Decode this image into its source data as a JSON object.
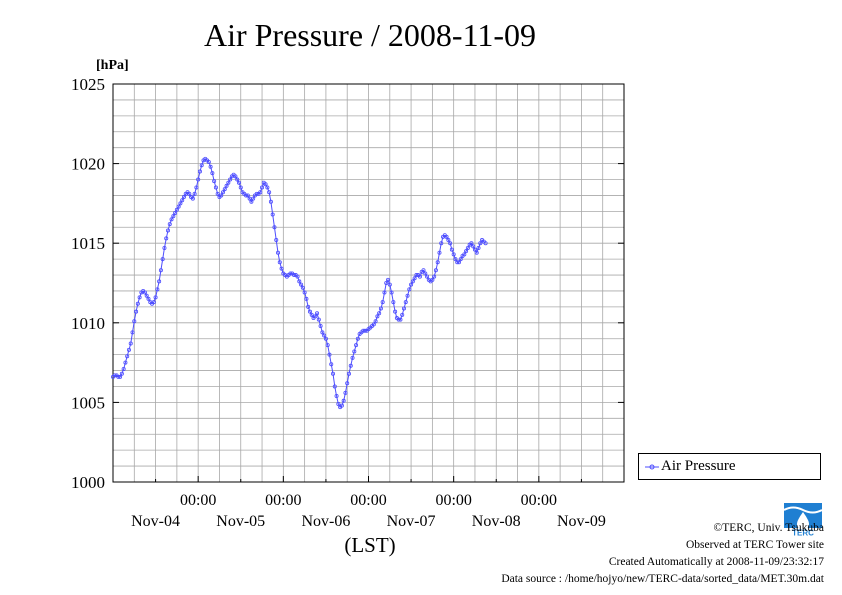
{
  "chart_data": {
    "type": "line",
    "title": "Air Pressure / 2008-11-09",
    "unit_label": "[hPa]",
    "xlabel": "(LST)",
    "ylim": [
      1000,
      1025
    ],
    "yticks": [
      1000,
      1005,
      1010,
      1015,
      1020,
      1025
    ],
    "xlim_hours": [
      0,
      144
    ],
    "time_ticks": [
      "00:00",
      "00:00",
      "00:00",
      "00:00",
      "00:00"
    ],
    "date_ticks": [
      "Nov-04",
      "Nov-05",
      "Nov-06",
      "Nov-07",
      "Nov-08",
      "Nov-09"
    ],
    "grid": true,
    "legend_position": "right",
    "color": "#4d4dff",
    "series": [
      {
        "name": "Air Pressure",
        "interval_minutes": 30,
        "start": "2008-11-04 00:00",
        "values": [
          1006.6,
          1006.7,
          1006.7,
          1006.6,
          1006.6,
          1006.8,
          1007.1,
          1007.5,
          1007.9,
          1008.3,
          1008.7,
          1009.4,
          1010.1,
          1010.7,
          1011.2,
          1011.6,
          1011.9,
          1012.0,
          1011.9,
          1011.7,
          1011.5,
          1011.3,
          1011.2,
          1011.3,
          1011.6,
          1012.1,
          1012.6,
          1013.3,
          1014.0,
          1014.7,
          1015.3,
          1015.8,
          1016.2,
          1016.5,
          1016.7,
          1016.9,
          1017.1,
          1017.3,
          1017.5,
          1017.7,
          1017.9,
          1018.1,
          1018.2,
          1018.1,
          1017.9,
          1017.8,
          1018.1,
          1018.5,
          1019.0,
          1019.5,
          1019.9,
          1020.2,
          1020.3,
          1020.2,
          1020.1,
          1019.8,
          1019.4,
          1018.9,
          1018.5,
          1018.1,
          1017.9,
          1018.0,
          1018.2,
          1018.4,
          1018.6,
          1018.8,
          1019.0,
          1019.2,
          1019.3,
          1019.2,
          1019.0,
          1018.8,
          1018.5,
          1018.2,
          1018.1,
          1018.0,
          1018.0,
          1017.8,
          1017.6,
          1017.8,
          1018.0,
          1018.1,
          1018.1,
          1018.2,
          1018.5,
          1018.8,
          1018.7,
          1018.5,
          1018.2,
          1017.6,
          1016.8,
          1016.0,
          1015.2,
          1014.4,
          1013.8,
          1013.4,
          1013.1,
          1013.0,
          1012.9,
          1013.0,
          1013.1,
          1013.1,
          1013.0,
          1013.0,
          1012.9,
          1012.6,
          1012.4,
          1012.2,
          1011.9,
          1011.5,
          1011.0,
          1010.7,
          1010.5,
          1010.3,
          1010.4,
          1010.6,
          1010.2,
          1009.8,
          1009.4,
          1009.2,
          1009.0,
          1008.6,
          1008.0,
          1007.4,
          1006.8,
          1006.0,
          1005.4,
          1004.9,
          1004.7,
          1004.8,
          1005.1,
          1005.6,
          1006.2,
          1006.8,
          1007.3,
          1007.8,
          1008.2,
          1008.6,
          1009.0,
          1009.3,
          1009.4,
          1009.5,
          1009.5,
          1009.5,
          1009.6,
          1009.7,
          1009.8,
          1009.9,
          1010.1,
          1010.4,
          1010.6,
          1010.9,
          1011.3,
          1011.9,
          1012.5,
          1012.7,
          1012.4,
          1011.9,
          1011.3,
          1010.7,
          1010.3,
          1010.2,
          1010.2,
          1010.5,
          1010.9,
          1011.3,
          1011.7,
          1012.1,
          1012.4,
          1012.6,
          1012.8,
          1013.0,
          1013.0,
          1012.9,
          1013.2,
          1013.3,
          1013.1,
          1012.9,
          1012.7,
          1012.6,
          1012.7,
          1012.9,
          1013.3,
          1013.8,
          1014.4,
          1015.0,
          1015.4,
          1015.5,
          1015.4,
          1015.2,
          1015.0,
          1014.6,
          1014.3,
          1014.0,
          1013.8,
          1013.8,
          1014.0,
          1014.2,
          1014.3,
          1014.5,
          1014.7,
          1014.9,
          1015.0,
          1014.8,
          1014.6,
          1014.4,
          1014.7,
          1015.0,
          1015.2,
          1015.1,
          1015.0
        ]
      }
    ]
  },
  "footer": {
    "copyright": "©TERC, Univ. Tsukuba",
    "observed": "Observed at TERC Tower site",
    "created": "Created Automatically at 2008-11-09/23:32:17",
    "source": "Data source : /home/hojyo/new/TERC-data/sorted_data/MET.30m.dat"
  },
  "logo_text": "TERC"
}
